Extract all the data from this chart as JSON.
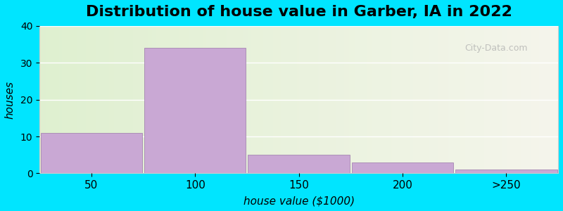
{
  "title": "Distribution of house value in Garber, IA in 2022",
  "xlabel": "house value ($1000)",
  "ylabel": "houses",
  "bar_values": [
    11,
    34,
    5,
    3,
    1
  ],
  "bar_labels": [
    "50",
    "100",
    "150",
    "200",
    ">250"
  ],
  "bar_color": "#c9a8d4",
  "bar_edge_color": "#9b79aa",
  "ylim": [
    0,
    40
  ],
  "yticks": [
    0,
    10,
    20,
    30,
    40
  ],
  "bg_color_outer": "#00e5ff",
  "grid_color": "#ffffff",
  "title_fontsize": 16,
  "axis_fontsize": 11,
  "watermark": "City-Data.com"
}
